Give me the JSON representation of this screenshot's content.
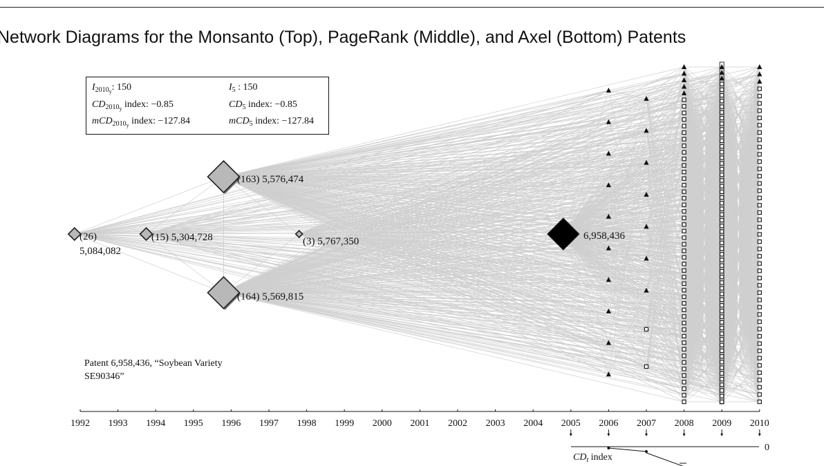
{
  "title": "Network Diagrams for the Monsanto (Top), PageRank (Middle), and Axel (Bottom) Patents",
  "stats": {
    "i_2010y": {
      "label": "I",
      "sub": "2010",
      "subsub": "y",
      "text": ": 150"
    },
    "i_5": {
      "label": "I",
      "sub": "5",
      "text": " : 150"
    },
    "cd_2010y": {
      "label": "CD",
      "sub": "2010",
      "subsub": "y",
      "text": " index: −0.85"
    },
    "cd_5": {
      "label": "CD",
      "sub": "5",
      "text": " index: −0.85"
    },
    "mcd_2010y": {
      "label": "mCD",
      "sub": "2010",
      "subsub": "y",
      "text": " index: −127.84"
    },
    "mcd_5": {
      "label": "mCD",
      "sub": "5",
      "text": " index: −127.84"
    }
  },
  "nodes": [
    {
      "id": "n26",
      "label_line1": "(26)",
      "label_line2": "5,084,082",
      "year": 1991.85,
      "row": "middle",
      "size": "small",
      "color": "#b8b8b8"
    },
    {
      "id": "n15",
      "label": "(15) 5,304,728",
      "year": 1993.75,
      "row": "middle",
      "size": "small",
      "color": "#b8b8b8"
    },
    {
      "id": "n163",
      "label": "(163) 5,576,474",
      "year": 1995.8,
      "row": "top",
      "size": "large",
      "color": "#b8b8b8"
    },
    {
      "id": "n164",
      "label": "(164) 5,569,815",
      "year": 1995.8,
      "row": "bottom",
      "size": "large",
      "color": "#b8b8b8"
    },
    {
      "id": "n3",
      "label": "(3) 5,767,350",
      "year": 1997.8,
      "row": "middle",
      "size": "tiny",
      "color": "#b8b8b8"
    },
    {
      "id": "focal",
      "label": "6,958,436",
      "year": 2004.8,
      "row": "middle",
      "size": "focal",
      "color": "#000000"
    }
  ],
  "citing_columns": [
    {
      "year": 2006,
      "triangles": 10,
      "squares": 0
    },
    {
      "year": 2007,
      "triangles": 7,
      "squares": 2
    },
    {
      "year": 2008,
      "triangles": 5,
      "squares": 47
    },
    {
      "year": 2009,
      "triangles": 3,
      "squares": 57
    },
    {
      "year": 2010,
      "triangles": 3,
      "squares": 44
    }
  ],
  "caption": {
    "line1": "Patent 6,958,436, “Soybean Variety",
    "line2": "SE90346”"
  },
  "axis": {
    "years": [
      "1992",
      "1993",
      "1994",
      "1995",
      "1996",
      "1997",
      "1998",
      "1999",
      "2000",
      "2001",
      "2002",
      "2003",
      "2004",
      "2005",
      "2006",
      "2007",
      "2008",
      "2009",
      "2010"
    ]
  },
  "cd_panel": {
    "label": "CD",
    "label_sub": "t",
    "label_suffix": " index",
    "zero_label": "0",
    "points": [
      {
        "year": 2006,
        "value": 0.0
      },
      {
        "year": 2007,
        "value": -0.03
      }
    ]
  }
}
